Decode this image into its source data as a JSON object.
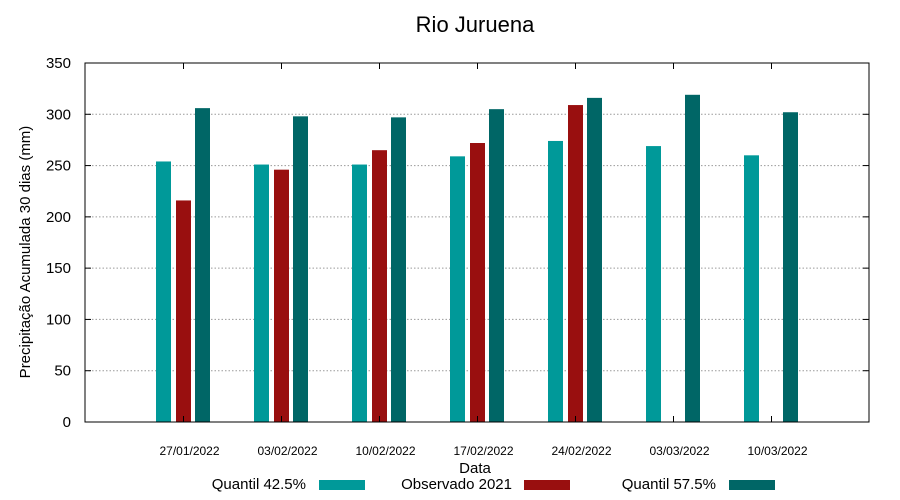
{
  "chart_data": {
    "type": "bar",
    "title": "Rio Juruena",
    "xlabel": "Data",
    "ylabel": "Precipitação Acumulada 30 dias (mm)",
    "ylim": [
      0,
      350
    ],
    "yticks": [
      0,
      50,
      100,
      150,
      200,
      250,
      300,
      350
    ],
    "grid": true,
    "legend_position": "bottom",
    "categories": [
      "27/01/2022",
      "03/02/2022",
      "10/02/2022",
      "17/02/2022",
      "24/02/2022",
      "03/03/2022",
      "10/03/2022"
    ],
    "series": [
      {
        "name": "Quantil 42.5%",
        "color": "#009999",
        "values": [
          254,
          251,
          251,
          259,
          274,
          269,
          260
        ]
      },
      {
        "name": "Observado 2021",
        "color": "#990f0f",
        "values": [
          216,
          246,
          265,
          272,
          309,
          null,
          null
        ]
      },
      {
        "name": "Quantil 57.5%",
        "color": "#006666",
        "values": [
          306,
          298,
          297,
          305,
          316,
          319,
          302
        ]
      }
    ]
  }
}
